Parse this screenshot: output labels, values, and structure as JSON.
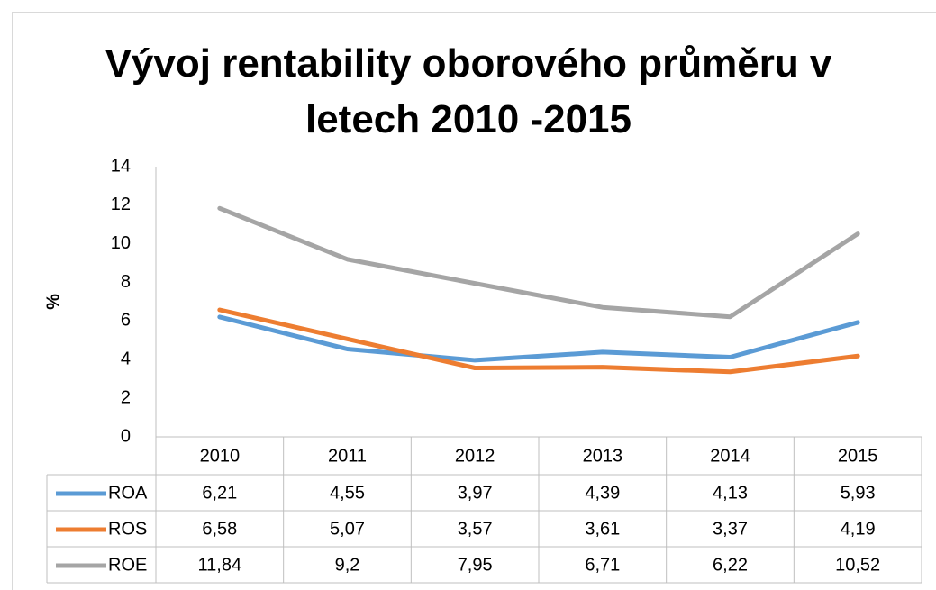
{
  "chart_data": {
    "type": "line",
    "title": "Vývoj rentability oborového průměru v letech 2010 -2015",
    "y_label": "%",
    "categories": [
      "2010",
      "2011",
      "2012",
      "2013",
      "2014",
      "2015"
    ],
    "series": [
      {
        "name": "ROA",
        "color": "#5b9bd5",
        "values": [
          6.21,
          4.55,
          3.97,
          4.39,
          4.13,
          5.93
        ],
        "value_labels": [
          "6,21",
          "4,55",
          "3,97",
          "4,39",
          "4,13",
          "5,93"
        ]
      },
      {
        "name": "ROS",
        "color": "#ed7d31",
        "values": [
          6.58,
          5.07,
          3.57,
          3.61,
          3.37,
          4.19
        ],
        "value_labels": [
          "6,58",
          "5,07",
          "3,57",
          "3,61",
          "3,37",
          "4,19"
        ]
      },
      {
        "name": "ROE",
        "color": "#a5a5a5",
        "values": [
          11.84,
          9.2,
          7.95,
          6.71,
          6.22,
          10.52
        ],
        "value_labels": [
          "11,84",
          "9,2",
          "7,95",
          "6,71",
          "6,22",
          "10,52"
        ]
      }
    ],
    "ylim": [
      0,
      14
    ],
    "yticks": [
      0,
      2,
      4,
      6,
      8,
      10,
      12,
      14
    ],
    "grid": false,
    "data_table": true
  }
}
